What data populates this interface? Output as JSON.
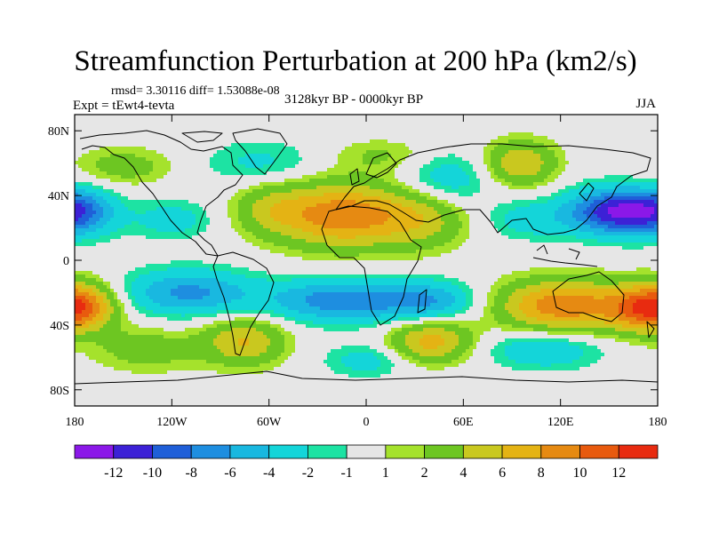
{
  "header": {
    "title": "Streamfunction Perturbation at 200 hPa (km2/s)",
    "stats": "rmsd= 3.30116 diff= 1.53088e-08",
    "experiment": "Expt = tEwt4-tevta",
    "period": "3128kyr BP - 0000kyr BP",
    "season": "JJA"
  },
  "map": {
    "lon_range": [
      -180,
      180
    ],
    "lat_range": [
      -90,
      90
    ],
    "xticks": [
      {
        "value": -180,
        "label": "180"
      },
      {
        "value": -120,
        "label": "120W"
      },
      {
        "value": -60,
        "label": "60W"
      },
      {
        "value": 0,
        "label": "0"
      },
      {
        "value": 60,
        "label": "60E"
      },
      {
        "value": 120,
        "label": "120E"
      },
      {
        "value": 180,
        "label": "180"
      }
    ],
    "yticks": [
      {
        "value": 80,
        "label": "80N"
      },
      {
        "value": 40,
        "label": "40N"
      },
      {
        "value": 0,
        "label": "0"
      },
      {
        "value": -40,
        "label": "40S"
      },
      {
        "value": -80,
        "label": "80S"
      }
    ],
    "anomalies": [
      {
        "lon": -15,
        "lat": 28,
        "value": 9.5,
        "rlon": 42,
        "rlat": 20
      },
      {
        "lon": 35,
        "lat": 25,
        "value": 4,
        "rlon": 28,
        "rlat": 18
      },
      {
        "lon": -60,
        "lat": 32,
        "value": 3,
        "rlon": 22,
        "rlat": 16
      },
      {
        "lon": -150,
        "lat": 58,
        "value": 3,
        "rlon": 30,
        "rlat": 12
      },
      {
        "lon": 10,
        "lat": 65,
        "value": 2.2,
        "rlon": 30,
        "rlat": 10
      },
      {
        "lon": -175,
        "lat": 30,
        "value": -6,
        "rlon": 22,
        "rlat": 14
      },
      {
        "lon": -65,
        "lat": 60,
        "value": -2.5,
        "rlon": 35,
        "rlat": 14
      },
      {
        "lon": 50,
        "lat": 50,
        "value": -3.5,
        "rlon": 28,
        "rlat": 16
      },
      {
        "lon": 95,
        "lat": 60,
        "value": 6,
        "rlon": 22,
        "rlat": 14
      },
      {
        "lon": 155,
        "lat": 30,
        "value": -12,
        "rlon": 30,
        "rlat": 14
      },
      {
        "lon": 100,
        "lat": 25,
        "value": -3,
        "rlon": 25,
        "rlat": 12
      },
      {
        "lon": -110,
        "lat": -20,
        "value": -6.5,
        "rlon": 40,
        "rlat": 14
      },
      {
        "lon": -15,
        "lat": -25,
        "value": -7.5,
        "rlon": 45,
        "rlat": 13
      },
      {
        "lon": 40,
        "lat": -25,
        "value": -5,
        "rlon": 28,
        "rlat": 12
      },
      {
        "lon": -175,
        "lat": -28,
        "value": 7.5,
        "rlon": 22,
        "rlat": 14
      },
      {
        "lon": 120,
        "lat": -28,
        "value": 9.5,
        "rlon": 38,
        "rlat": 16
      },
      {
        "lon": 170,
        "lat": -30,
        "value": 7,
        "rlon": 25,
        "rlat": 15
      },
      {
        "lon": -75,
        "lat": -50,
        "value": 6,
        "rlon": 25,
        "rlat": 15
      },
      {
        "lon": -135,
        "lat": -55,
        "value": 3,
        "rlon": 35,
        "rlat": 14
      },
      {
        "lon": 40,
        "lat": -50,
        "value": 7,
        "rlon": 25,
        "rlat": 13
      },
      {
        "lon": 110,
        "lat": -55,
        "value": -4,
        "rlon": 35,
        "rlat": 12
      },
      {
        "lon": 0,
        "lat": -62,
        "value": -3,
        "rlon": 25,
        "rlat": 10
      },
      {
        "lon": -120,
        "lat": 25,
        "value": -3,
        "rlon": 25,
        "rlat": 12
      }
    ]
  },
  "colorbar": {
    "levels": [
      -14,
      -12,
      -10,
      -8,
      -6,
      -4,
      -2,
      -1,
      1,
      2,
      4,
      6,
      8,
      10,
      12,
      14
    ],
    "colors": [
      "#8b18e8",
      "#3c21d6",
      "#1f5fd8",
      "#1e8ee0",
      "#19b8e0",
      "#14d5d9",
      "#1de3a3",
      "#e6e6e6",
      "#a5e22c",
      "#6dc622",
      "#c9c81f",
      "#e4b314",
      "#e68a12",
      "#e85a0e",
      "#e82b10"
    ],
    "labels": [
      {
        "index": 1,
        "text": "-12"
      },
      {
        "index": 2,
        "text": "-10"
      },
      {
        "index": 3,
        "text": "-8"
      },
      {
        "index": 4,
        "text": "-6"
      },
      {
        "index": 5,
        "text": "-4"
      },
      {
        "index": 6,
        "text": "-2"
      },
      {
        "index": 7,
        "text": "-1"
      },
      {
        "index": 8,
        "text": "1"
      },
      {
        "index": 9,
        "text": "2"
      },
      {
        "index": 10,
        "text": "4"
      },
      {
        "index": 11,
        "text": "6"
      },
      {
        "index": 12,
        "text": "8"
      },
      {
        "index": 13,
        "text": "10"
      },
      {
        "index": 14,
        "text": "12"
      }
    ]
  }
}
